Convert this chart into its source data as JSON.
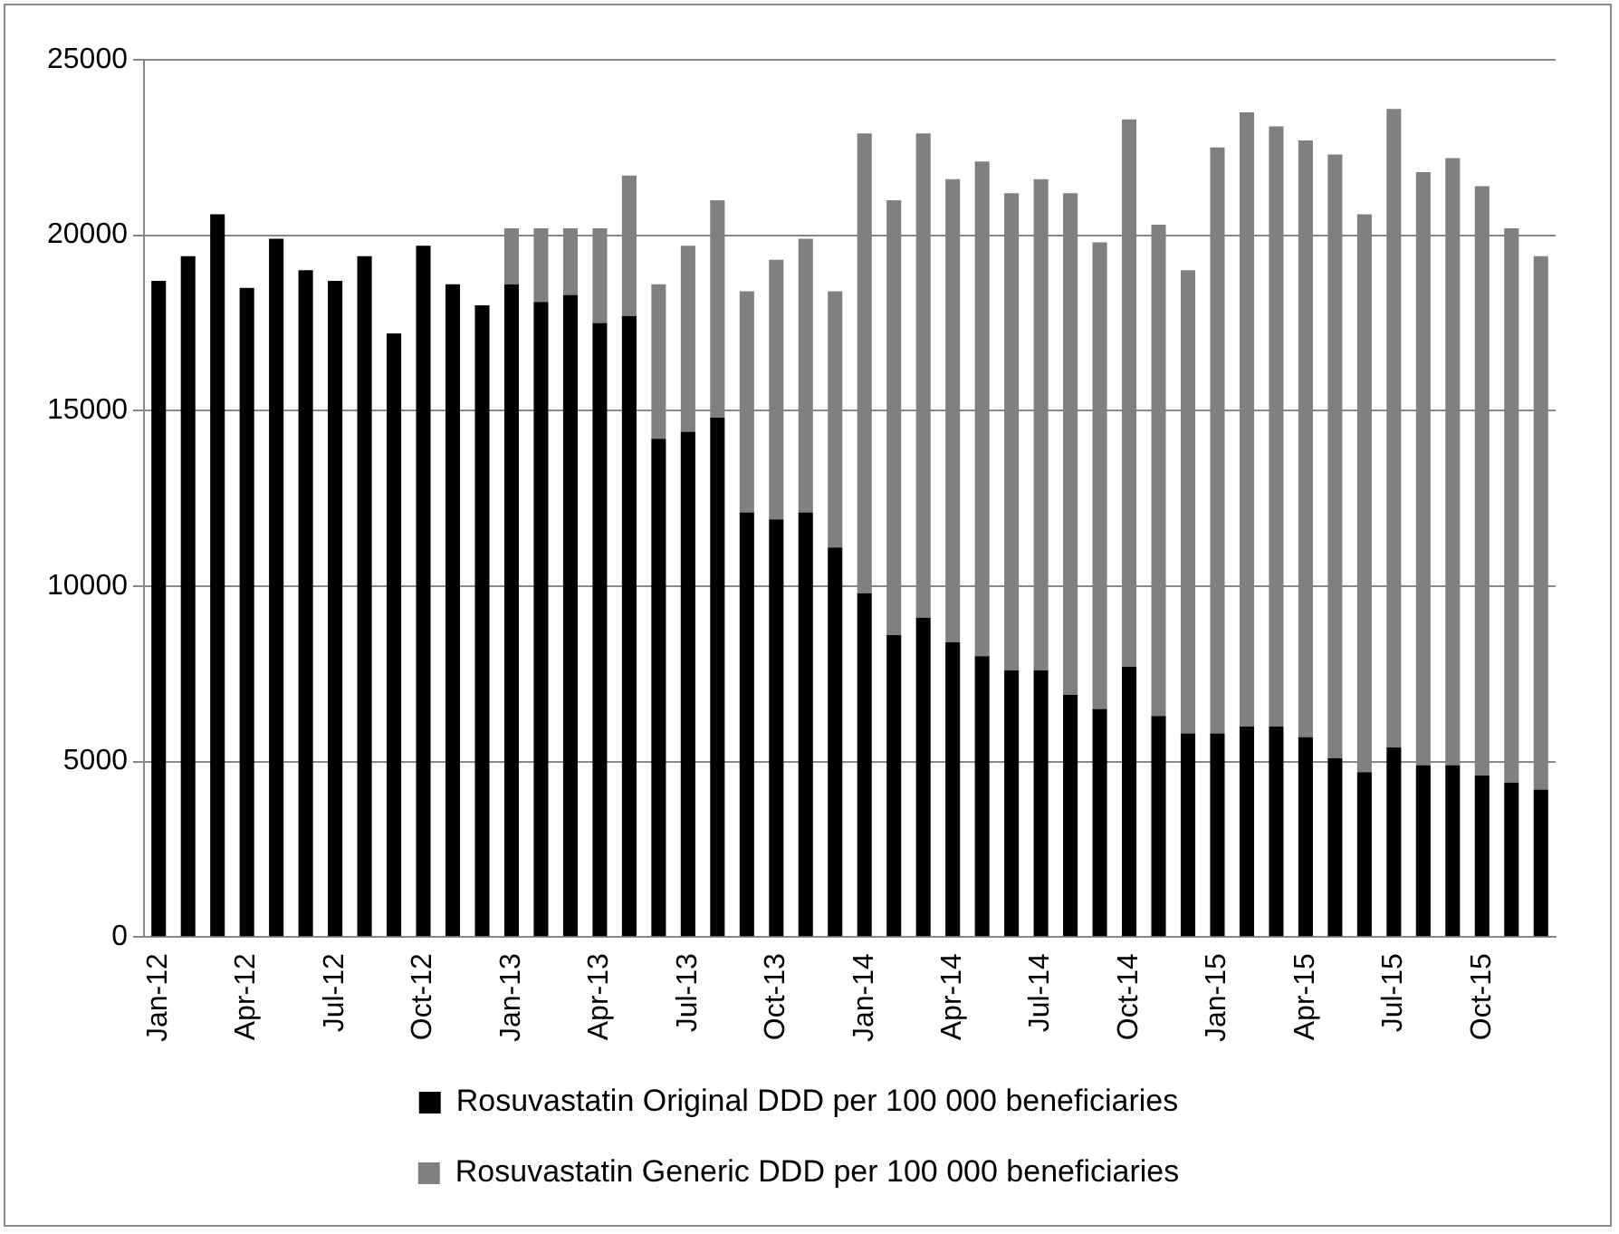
{
  "chart_data": {
    "type": "bar",
    "stacked": true,
    "categories": [
      "Jan-12",
      null,
      null,
      "Apr-12",
      null,
      null,
      "Jul-12",
      null,
      null,
      "Oct-12",
      null,
      null,
      "Jan-13",
      null,
      null,
      "Apr-13",
      null,
      null,
      "Jul-13",
      null,
      null,
      "Oct-13",
      null,
      null,
      "Jan-14",
      null,
      null,
      "Apr-14",
      null,
      null,
      "Jul-14",
      null,
      null,
      "Oct-14",
      null,
      null,
      "Jan-15",
      null,
      null,
      "Apr-15",
      null,
      null,
      "Jul-15",
      null,
      null,
      "Oct-15",
      null,
      null
    ],
    "series": [
      {
        "name": "Rosuvastatin Original DDD per 100 000 beneficiaries",
        "color": "#000000",
        "values": [
          18700,
          19400,
          20600,
          18500,
          19900,
          19000,
          18700,
          19400,
          17200,
          19700,
          18600,
          18000,
          18600,
          18100,
          18300,
          17500,
          17700,
          14200,
          14400,
          14800,
          12100,
          11900,
          12100,
          11100,
          9800,
          8600,
          9100,
          8400,
          8000,
          7600,
          7600,
          6900,
          6500,
          7700,
          6300,
          5800,
          5800,
          6000,
          6000,
          5700,
          5100,
          4700,
          5400,
          4900,
          4900,
          4600,
          4400,
          4200
        ]
      },
      {
        "name": "Rosuvastatin Generic DDD per 100 000 beneficiaries",
        "color": "#808080",
        "values": [
          0,
          0,
          0,
          0,
          0,
          0,
          0,
          0,
          0,
          0,
          0,
          0,
          1600,
          2100,
          1900,
          2700,
          4000,
          4400,
          5300,
          6200,
          6300,
          7400,
          7800,
          7300,
          13100,
          12400,
          13800,
          13200,
          14100,
          13600,
          14000,
          14300,
          13300,
          15600,
          14000,
          13200,
          16700,
          17500,
          17100,
          17000,
          17200,
          15900,
          18200,
          16900,
          17300,
          16800,
          15800,
          15200
        ]
      }
    ],
    "ylim": [
      0,
      25000
    ],
    "yticks": [
      0,
      5000,
      10000,
      15000,
      20000,
      25000
    ],
    "grid": "y",
    "legend": "bottom"
  }
}
